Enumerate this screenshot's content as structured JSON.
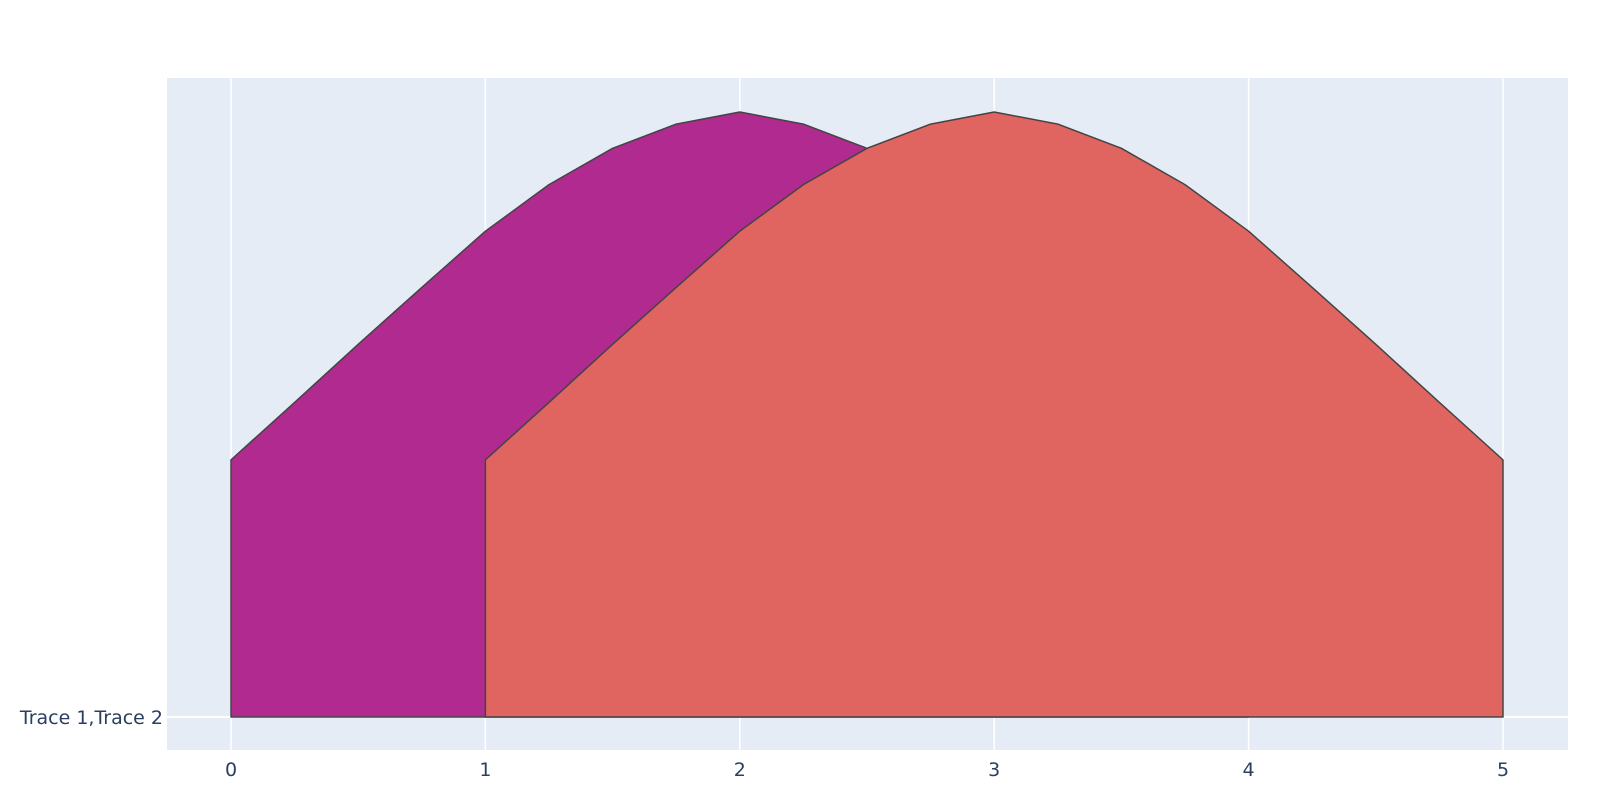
{
  "chart_data": {
    "type": "violin",
    "orientation": "horizontal",
    "side": "positive",
    "category_label": "Trace 1,Trace 2",
    "x_ticks": [
      "0",
      "1",
      "2",
      "3",
      "4",
      "5"
    ],
    "xlim": [
      -0.25,
      5.25
    ],
    "grid": true,
    "colors": {
      "background": "#e5ecf6",
      "grid": "#ffffff"
    },
    "series": [
      {
        "name": "Trace 1",
        "color": "#b02a90",
        "x": [
          0,
          0.25,
          0.5,
          0.75,
          1,
          1.25,
          1.5,
          1.75,
          2,
          2.25,
          2.5,
          2.75,
          3,
          3.25,
          3.5,
          3.75,
          4
        ],
        "density": [
          0.425,
          0.52,
          0.616,
          0.71,
          0.803,
          0.88,
          0.94,
          0.98,
          1.0,
          0.98,
          0.94,
          0.88,
          0.803,
          0.71,
          0.616,
          0.52,
          0.425
        ]
      },
      {
        "name": "Trace 2",
        "color": "#e06561",
        "x": [
          1,
          1.25,
          1.5,
          1.75,
          2,
          2.25,
          2.5,
          2.75,
          3,
          3.25,
          3.5,
          3.75,
          4,
          4.25,
          4.5,
          4.75,
          5
        ],
        "density": [
          0.425,
          0.52,
          0.616,
          0.71,
          0.803,
          0.88,
          0.94,
          0.98,
          1.0,
          0.98,
          0.94,
          0.88,
          0.803,
          0.71,
          0.616,
          0.52,
          0.425
        ]
      }
    ]
  }
}
